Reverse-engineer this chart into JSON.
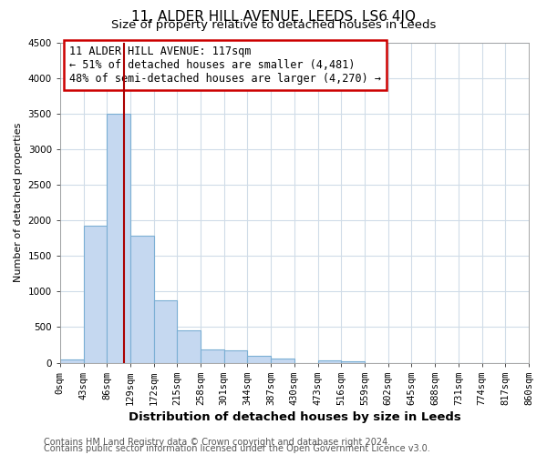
{
  "title_main": "11, ALDER HILL AVENUE, LEEDS, LS6 4JQ",
  "title_sub": "Size of property relative to detached houses in Leeds",
  "bar_edges": [
    0,
    43,
    86,
    129,
    172,
    215,
    258,
    301,
    344,
    387,
    430,
    473,
    516,
    559,
    602,
    645,
    688,
    731,
    774,
    817,
    860
  ],
  "bar_heights": [
    50,
    1920,
    3500,
    1780,
    870,
    460,
    185,
    175,
    95,
    55,
    0,
    30,
    25,
    0,
    0,
    0,
    0,
    0,
    0,
    0
  ],
  "bar_color": "#c5d8f0",
  "bar_edge_color": "#7bafd4",
  "tick_labels": [
    "0sqm",
    "43sqm",
    "86sqm",
    "129sqm",
    "172sqm",
    "215sqm",
    "258sqm",
    "301sqm",
    "344sqm",
    "387sqm",
    "430sqm",
    "473sqm",
    "516sqm",
    "559sqm",
    "602sqm",
    "645sqm",
    "688sqm",
    "731sqm",
    "774sqm",
    "817sqm",
    "860sqm"
  ],
  "xlabel": "Distribution of detached houses by size in Leeds",
  "ylabel": "Number of detached properties",
  "ylim": [
    0,
    4500
  ],
  "xlim": [
    0,
    860
  ],
  "yticks": [
    0,
    500,
    1000,
    1500,
    2000,
    2500,
    3000,
    3500,
    4000,
    4500
  ],
  "vline_x": 117,
  "vline_color": "#aa0000",
  "annotation_title": "11 ALDER HILL AVENUE: 117sqm",
  "annotation_line1": "← 51% of detached houses are smaller (4,481)",
  "annotation_line2": "48% of semi-detached houses are larger (4,270) →",
  "annotation_box_color": "#cc0000",
  "footer1": "Contains HM Land Registry data © Crown copyright and database right 2024.",
  "footer2": "Contains public sector information licensed under the Open Government Licence v3.0.",
  "bg_color": "#ffffff",
  "plot_bg_color": "#ffffff",
  "grid_color": "#d0dce8",
  "title_fontsize": 11,
  "subtitle_fontsize": 9.5,
  "xlabel_fontsize": 9.5,
  "ylabel_fontsize": 8,
  "tick_fontsize": 7.5,
  "footer_fontsize": 7,
  "annotation_fontsize": 8.5
}
